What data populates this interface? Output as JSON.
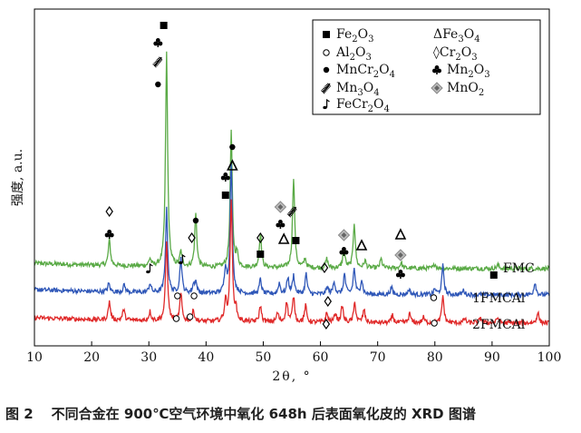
{
  "figure": {
    "caption_number": "图 2",
    "caption_text": "不同合金在 900℃空气环境中氧化 648h 后表面氧化皮的 XRD 图谱"
  },
  "chart_data": {
    "type": "line",
    "xlabel": "2θ, °",
    "ylabel": "强度, a.u.",
    "xlim": [
      10,
      100
    ],
    "xticks": [
      10,
      20,
      30,
      40,
      50,
      60,
      70,
      80,
      90,
      100
    ],
    "grid": false,
    "legend_position": "top-right",
    "colors": {
      "FMC": "#5aaa46",
      "1FMCAl": "#2f57b8",
      "2FMCAl": "#e02a2a"
    },
    "series": [
      {
        "name": "FMC",
        "color": "#5aaa46",
        "baseline": 0.0,
        "peaks": [
          [
            23.1,
            28
          ],
          [
            30.2,
            8
          ],
          [
            33.1,
            235
          ],
          [
            35.6,
            16
          ],
          [
            38.2,
            58
          ],
          [
            44.4,
            150
          ],
          [
            45.4,
            14
          ],
          [
            49.5,
            38
          ],
          [
            55.3,
            100
          ],
          [
            57.3,
            10
          ],
          [
            61.1,
            10
          ],
          [
            64.1,
            22
          ],
          [
            65.9,
            50
          ],
          [
            67.8,
            8
          ],
          [
            70.6,
            10
          ],
          [
            74.1,
            6
          ],
          [
            80.0,
            5
          ],
          [
            91.0,
            4
          ]
        ]
      },
      {
        "name": "1FMCAl",
        "color": "#2f57b8",
        "baseline": 0.0,
        "peaks": [
          [
            23.0,
            9
          ],
          [
            25.7,
            8
          ],
          [
            30.2,
            10
          ],
          [
            33.1,
            92
          ],
          [
            35.6,
            38
          ],
          [
            37.8,
            8
          ],
          [
            38.2,
            12
          ],
          [
            43.4,
            28
          ],
          [
            44.4,
            145
          ],
          [
            49.5,
            16
          ],
          [
            52.8,
            12
          ],
          [
            54.3,
            18
          ],
          [
            55.3,
            20
          ],
          [
            57.5,
            22
          ],
          [
            61.2,
            8
          ],
          [
            62.4,
            14
          ],
          [
            64.2,
            22
          ],
          [
            65.9,
            28
          ],
          [
            67.2,
            16
          ],
          [
            72.4,
            8
          ],
          [
            75.5,
            6
          ],
          [
            80.0,
            6
          ],
          [
            81.4,
            32
          ],
          [
            85.0,
            5
          ],
          [
            97.5,
            14
          ]
        ]
      },
      {
        "name": "2FMCAl",
        "color": "#e02a2a",
        "baseline": 0.0,
        "peaks": [
          [
            23.1,
            20
          ],
          [
            25.6,
            12
          ],
          [
            30.2,
            10
          ],
          [
            33.1,
            88
          ],
          [
            35.6,
            30
          ],
          [
            37.8,
            12
          ],
          [
            43.4,
            22
          ],
          [
            44.4,
            135
          ],
          [
            45.2,
            12
          ],
          [
            49.5,
            18
          ],
          [
            52.5,
            10
          ],
          [
            54.1,
            22
          ],
          [
            55.3,
            28
          ],
          [
            57.4,
            18
          ],
          [
            61.1,
            10
          ],
          [
            62.6,
            10
          ],
          [
            63.8,
            18
          ],
          [
            66.0,
            22
          ],
          [
            67.6,
            14
          ],
          [
            72.6,
            8
          ],
          [
            75.6,
            10
          ],
          [
            78.0,
            6
          ],
          [
            81.4,
            30
          ],
          [
            85.2,
            5
          ],
          [
            88.0,
            6
          ],
          [
            91.0,
            6
          ],
          [
            98.0,
            12
          ]
        ]
      }
    ],
    "series_labels": [
      "FMC",
      "1FMCAl",
      "2FMCAl"
    ],
    "legend": [
      {
        "marker": "square",
        "label": "Fe2O3"
      },
      {
        "marker": "triangle",
        "label": "ΔFe3O4"
      },
      {
        "marker": "circle-open",
        "label": "Al2O3"
      },
      {
        "marker": "diamond",
        "label": "◊Cr2O3"
      },
      {
        "marker": "dot",
        "label": "MnCr2O4"
      },
      {
        "marker": "club",
        "label": "Mn2O3"
      },
      {
        "marker": "fern",
        "label": "Mn3O4"
      },
      {
        "marker": "diamond-gray",
        "label": "MnO2"
      },
      {
        "marker": "note",
        "label": "FeCr2O4"
      }
    ],
    "annotations": [
      {
        "x": 23.1,
        "symbols": [
          "club",
          "diamond"
        ]
      },
      {
        "x": 30.1,
        "symbols": [
          "note"
        ]
      },
      {
        "x": 31.6,
        "symbols": [
          "dot",
          "fern",
          "club"
        ]
      },
      {
        "x": 32.6,
        "symbols": [
          "square"
        ]
      },
      {
        "x": 35.8,
        "symbols": [
          "note"
        ]
      },
      {
        "x": 37.5,
        "symbols": [
          "diamond"
        ]
      },
      {
        "x": 38.2,
        "symbols": [
          "dot"
        ]
      },
      {
        "x": 43.4,
        "symbols": [
          "square",
          "club"
        ]
      },
      {
        "x": 44.6,
        "symbols": [
          "triangle",
          "dot"
        ]
      },
      {
        "x": 49.5,
        "symbols": [
          "square",
          "diamond"
        ]
      },
      {
        "x": 53.0,
        "symbols": [
          "diamond-gray",
          "club"
        ]
      },
      {
        "x": 53.6,
        "symbols": [
          "triangle"
        ]
      },
      {
        "x": 55.1,
        "symbols": [
          "fern"
        ]
      },
      {
        "x": 55.7,
        "symbols": [
          "square"
        ]
      },
      {
        "x": 60.7,
        "symbols": [
          "diamond"
        ]
      },
      {
        "x": 64.1,
        "symbols": [
          "diamond-gray",
          "club"
        ]
      },
      {
        "x": 67.2,
        "symbols": [
          "triangle"
        ]
      },
      {
        "x": 74.0,
        "symbols": [
          "triangle",
          "diamond-gray",
          "club"
        ]
      },
      {
        "x": 90.3,
        "symbols": [
          "square"
        ]
      },
      {
        "x": 61.3,
        "symbols": [
          "diamond"
        ]
      },
      {
        "x": 37.9,
        "symbols": [
          "circle-open"
        ]
      },
      {
        "x": 35.0,
        "symbols": [
          "circle-open"
        ]
      },
      {
        "x": 79.8,
        "symbols": [
          "circle-open"
        ]
      },
      {
        "x": 61.0,
        "symbols": [
          "diamond"
        ]
      },
      {
        "x": 34.8,
        "symbols": [
          "circle-open"
        ]
      },
      {
        "x": 37.2,
        "symbols": [
          "circle-open"
        ]
      },
      {
        "x": 79.9,
        "symbols": [
          "circle-open"
        ]
      }
    ]
  }
}
